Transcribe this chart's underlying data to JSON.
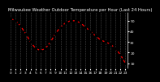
{
  "title": "Milwaukee Weather Outdoor Temperature per Hour (Last 24 Hours)",
  "hours": [
    0,
    1,
    2,
    3,
    4,
    5,
    6,
    7,
    8,
    9,
    10,
    11,
    12,
    13,
    14,
    15,
    16,
    17,
    18,
    19,
    20,
    21,
    22,
    23
  ],
  "temps": [
    52,
    50,
    45,
    38,
    30,
    24,
    22,
    24,
    30,
    38,
    44,
    48,
    50,
    50,
    48,
    44,
    40,
    36,
    32,
    30,
    28,
    24,
    18,
    10
  ],
  "line_color": "#ff0000",
  "dot_color": "#000000",
  "bg_color": "#000000",
  "plot_bg_color": "#000000",
  "grid_color": "#555555",
  "title_color": "#ffffff",
  "tick_color": "#ffffff",
  "title_fontsize": 3.8,
  "tick_fontsize": 3.2,
  "ylim_min": 5,
  "ylim_max": 58,
  "ytick_values": [
    10,
    20,
    30,
    40,
    50
  ],
  "ytick_labels": [
    "10",
    "20",
    "30",
    "40",
    "50"
  ],
  "right_border_color": "#ffffff"
}
